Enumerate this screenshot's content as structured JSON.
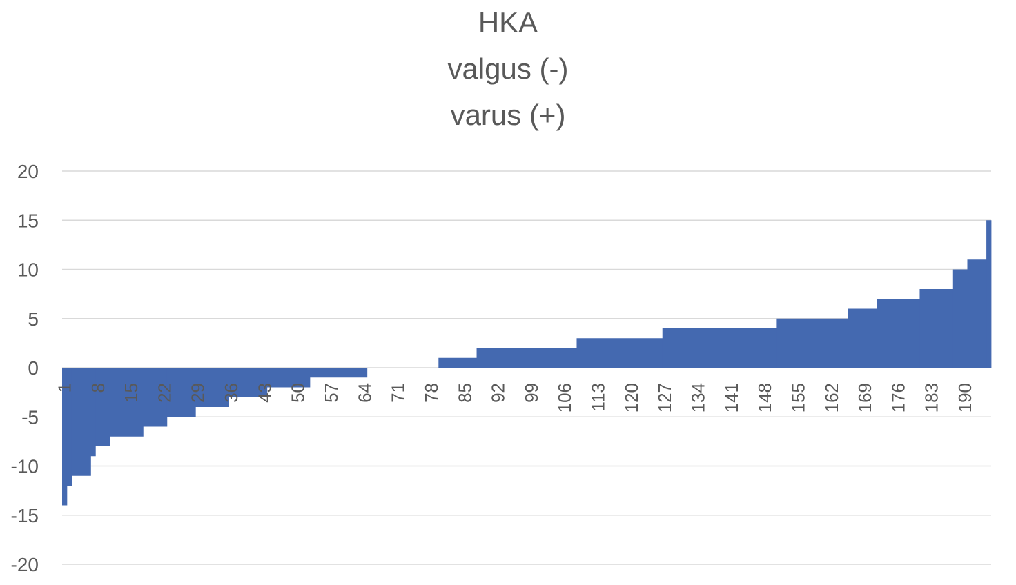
{
  "chart_data": {
    "type": "bar",
    "title_lines": [
      "HKA",
      "valgus (-)",
      "varus (+)"
    ],
    "xlabel": "",
    "ylabel": "",
    "ylim": [
      -20,
      20
    ],
    "yticks": [
      20,
      15,
      10,
      5,
      0,
      -5,
      -10,
      -15,
      -20
    ],
    "xticks": [
      1,
      8,
      15,
      22,
      29,
      36,
      43,
      50,
      57,
      64,
      71,
      78,
      85,
      92,
      99,
      106,
      113,
      120,
      127,
      134,
      141,
      148,
      155,
      162,
      169,
      176,
      183,
      190
    ],
    "n_points": 195,
    "grid": true,
    "legend": "none",
    "color": "#4469b0",
    "segments": [
      {
        "from": 1,
        "to": 1,
        "value": -14
      },
      {
        "from": 2,
        "to": 2,
        "value": -12
      },
      {
        "from": 3,
        "to": 6,
        "value": -11
      },
      {
        "from": 7,
        "to": 7,
        "value": -9
      },
      {
        "from": 8,
        "to": 10,
        "value": -8
      },
      {
        "from": 11,
        "to": 17,
        "value": -7
      },
      {
        "from": 18,
        "to": 22,
        "value": -6
      },
      {
        "from": 23,
        "to": 28,
        "value": -5
      },
      {
        "from": 29,
        "to": 35,
        "value": -4
      },
      {
        "from": 36,
        "to": 43,
        "value": -3
      },
      {
        "from": 44,
        "to": 52,
        "value": -2
      },
      {
        "from": 53,
        "to": 64,
        "value": -1
      },
      {
        "from": 65,
        "to": 79,
        "value": 0
      },
      {
        "from": 80,
        "to": 87,
        "value": 1
      },
      {
        "from": 88,
        "to": 108,
        "value": 2
      },
      {
        "from": 109,
        "to": 126,
        "value": 3
      },
      {
        "from": 127,
        "to": 150,
        "value": 4
      },
      {
        "from": 151,
        "to": 165,
        "value": 5
      },
      {
        "from": 166,
        "to": 171,
        "value": 6
      },
      {
        "from": 172,
        "to": 180,
        "value": 7
      },
      {
        "from": 181,
        "to": 187,
        "value": 8
      },
      {
        "from": 188,
        "to": 190,
        "value": 10
      },
      {
        "from": 191,
        "to": 194,
        "value": 11
      },
      {
        "from": 195,
        "to": 195,
        "value": 15
      }
    ]
  }
}
